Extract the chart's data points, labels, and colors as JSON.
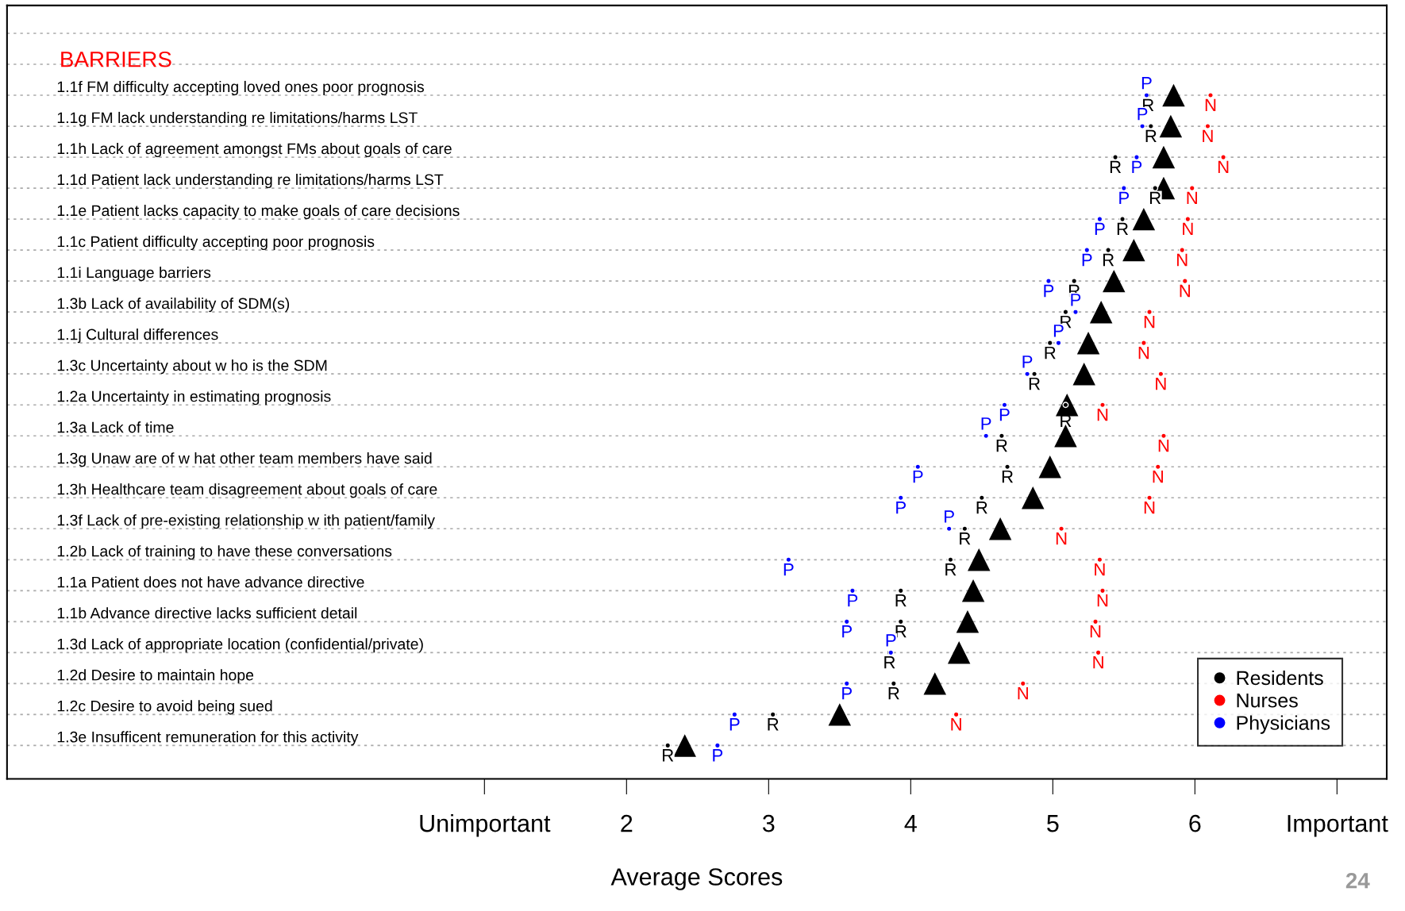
{
  "chart_data": {
    "type": "scatter",
    "title": "BARRIERS",
    "xlabel": "Average Scores",
    "categories": [
      "1.1f FM difficulty accepting loved ones poor prognosis",
      "1.1g FM lack understanding re limitations/harms LST",
      "1.1h Lack of agreement amongst FMs about goals of care",
      "1.1d Patient lack understanding re limitations/harms LST",
      "1.1e Patient lacks capacity to make goals of care decisions",
      "1.1c Patient difficulty accepting poor prognosis",
      "1.1i Language barriers",
      "1.3b Lack of availability of SDM(s)",
      "1.1j Cultural differences",
      "1.3c Uncertainty about w ho is the SDM",
      "1.2a Uncertainty in estimating prognosis",
      "1.3a Lack of time",
      "1.3g Unaw are of w hat other team members have said",
      "1.3h Healthcare team disagreement about goals of care",
      "1.3f Lack of pre-existing relationship w ith patient/family",
      "1.2b Lack of training to have these conversations",
      "1.1a Patient does not have advance directive",
      "1.1b Advance directive lacks sufficient detail",
      "1.3d Lack of appropriate location (confidential/private)",
      "1.2d Desire to maintain hope",
      "1.2c Desire to avoid being sued",
      "1.3e Insufficent remuneration for this activity"
    ],
    "series": [
      {
        "color": "#000000",
        "marker": "triangle",
        "values": [
          5.85,
          5.83,
          5.78,
          5.78,
          5.64,
          5.57,
          5.43,
          5.34,
          5.25,
          5.22,
          5.1,
          5.09,
          4.98,
          4.86,
          4.63,
          4.48,
          4.44,
          4.4,
          4.34,
          4.17,
          3.5,
          2.41
        ]
      },
      {
        "name": "Residents",
        "color": "#000000",
        "marker": "circle",
        "values": [
          5.67,
          5.69,
          5.44,
          5.72,
          5.49,
          5.39,
          5.15,
          5.09,
          4.98,
          4.87,
          5.09,
          4.64,
          4.68,
          4.5,
          4.38,
          4.28,
          3.93,
          3.93,
          3.85,
          3.88,
          3.03,
          2.29
        ],
        "value_labels": [
          "R",
          "R",
          "R",
          "R",
          "R",
          "R",
          "R",
          "R",
          "R",
          "R",
          "R",
          "R",
          "R",
          "R",
          "R",
          "R",
          "R",
          "R",
          "R",
          "R",
          "R",
          "R"
        ]
      },
      {
        "name": "Nurses",
        "color": "#ff0000",
        "marker": "circle",
        "values": [
          6.11,
          6.09,
          6.2,
          5.98,
          5.95,
          5.91,
          5.93,
          5.68,
          5.64,
          5.76,
          5.35,
          5.78,
          5.74,
          5.68,
          5.06,
          5.33,
          5.35,
          5.3,
          5.32,
          4.79,
          4.32,
          null
        ],
        "value_labels": [
          "N",
          "N",
          "N",
          "N",
          "N",
          "N",
          "N",
          "N",
          "N",
          "N",
          "N",
          "N",
          "N",
          "N",
          "N",
          "N",
          "N",
          "N",
          "N",
          "N",
          "N",
          null
        ]
      },
      {
        "name": "Physicians",
        "color": "#0000ff",
        "marker": "circle",
        "values": [
          5.66,
          5.63,
          5.59,
          5.5,
          5.33,
          5.24,
          4.97,
          5.16,
          5.04,
          4.82,
          4.66,
          4.53,
          4.05,
          3.93,
          4.27,
          3.14,
          3.59,
          3.55,
          3.86,
          3.55,
          2.76,
          2.64
        ],
        "value_labels": [
          "P",
          "P",
          "P",
          "P",
          "P",
          "P",
          "P",
          "P",
          "P",
          "P",
          "P",
          "P",
          "P",
          "P",
          "P",
          "P",
          "P",
          "P",
          "P",
          "P",
          "P",
          "P"
        ]
      }
    ],
    "xlim": [
      -2.36,
      7.35
    ],
    "xticks": [
      {
        "value": 1,
        "label": "Unimportant"
      },
      2,
      3,
      4,
      5,
      6,
      {
        "value": 7,
        "label": "Important"
      }
    ],
    "orientation": "horizontal",
    "grid": "y",
    "legend": "bottom right",
    "annotations": [
      "24"
    ]
  }
}
